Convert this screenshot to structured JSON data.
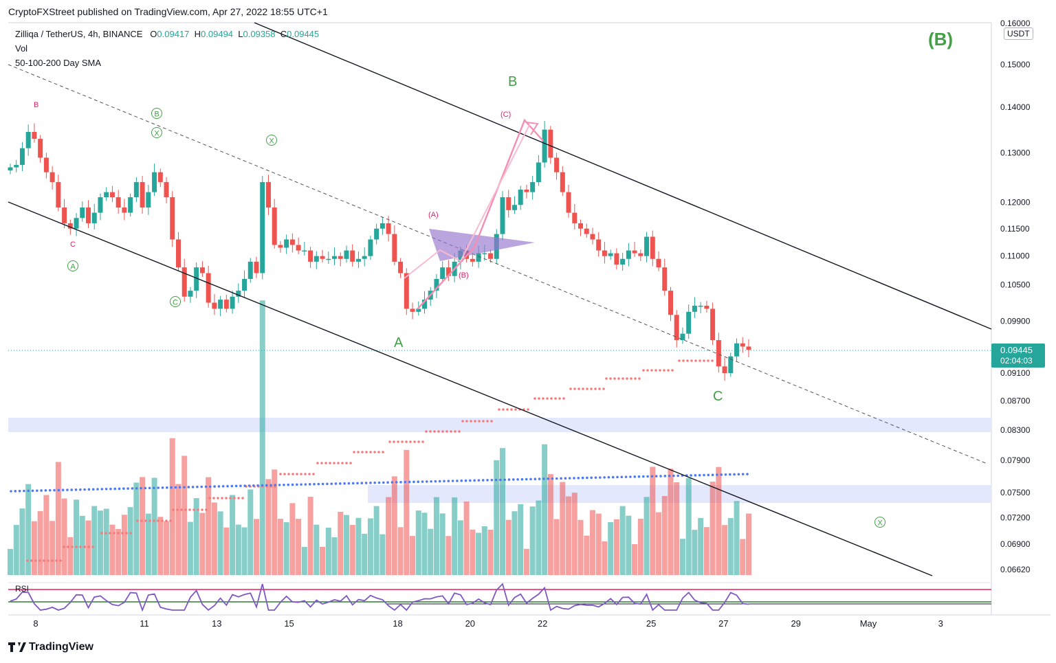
{
  "header": {
    "published": "CryptoFXStreet published on TradingView.com, Apr 27, 2022 18:55 UTC+1"
  },
  "legend": {
    "symbol": "Zilliqa / TetherUS, 4h, BINANCE",
    "o_label": "O",
    "o_value": "0.09417",
    "h_label": "H",
    "h_value": "0.09494",
    "l_label": "L",
    "l_value": "0.09358",
    "c_label": "C",
    "c_value": "0.09445",
    "vol": "Vol",
    "sma": "50-100-200 Day SMA"
  },
  "price_axis": {
    "currency": "USDT",
    "top_label": "0.16000",
    "current_price": "0.09445",
    "countdown": "02:04:03"
  },
  "rsi_label": "RSI",
  "footer": {
    "brand": "TradingView"
  },
  "colors": {
    "up": "#26a69a",
    "down": "#ef5350",
    "sma": "#4e79f5",
    "sar": "#f47c7c",
    "wave_green": "#43a047",
    "wave_pink": "#e91e63",
    "triangle": "#9575cd",
    "zone": "#e3e8fd",
    "rsi_line": "#7e57c2",
    "rsi_upper": "#e91e63",
    "rsi_lower": "#2e7d32"
  },
  "chart_data": {
    "type": "candlestick",
    "price_ticks": [
      0.15,
      0.14,
      0.13,
      0.12,
      0.115,
      0.11,
      0.105,
      0.099,
      0.091,
      0.087,
      0.083,
      0.079,
      0.075,
      0.072,
      0.069,
      0.0662
    ],
    "price_tick_labels": [
      "0.15000",
      "0.14000",
      "0.13000",
      "0.12000",
      "0.11500",
      "0.11000",
      "0.10500",
      "0.09900",
      "0.09100",
      "0.08700",
      "0.08300",
      "0.07900",
      "0.07500",
      "0.07200",
      "0.06900",
      "0.06620"
    ],
    "x_ticks": [
      "8",
      "11",
      "13",
      "15",
      "18",
      "20",
      "22",
      "25",
      "27",
      "29",
      "May",
      "3"
    ],
    "x_tick_days": [
      8,
      11,
      13,
      15,
      18,
      20,
      22,
      25,
      27,
      29,
      31,
      33
    ],
    "closes": [
      0.127,
      0.1275,
      0.131,
      0.1345,
      0.133,
      0.129,
      0.126,
      0.124,
      0.119,
      0.116,
      0.115,
      0.117,
      0.119,
      0.116,
      0.118,
      0.121,
      0.122,
      0.121,
      0.119,
      0.118,
      0.121,
      0.124,
      0.119,
      0.122,
      0.126,
      0.124,
      0.121,
      0.113,
      0.108,
      0.103,
      0.104,
      0.108,
      0.107,
      0.102,
      0.101,
      0.1025,
      0.101,
      0.103,
      0.104,
      0.106,
      0.109,
      0.107,
      0.124,
      0.119,
      0.112,
      0.1115,
      0.113,
      0.112,
      0.111,
      0.111,
      0.109,
      0.11,
      0.1095,
      0.1095,
      0.11,
      0.1095,
      0.111,
      0.109,
      0.1095,
      0.11,
      0.113,
      0.115,
      0.116,
      0.114,
      0.109,
      0.107,
      0.101,
      0.1005,
      0.101,
      0.1025,
      0.104,
      0.106,
      0.108,
      0.1065,
      0.109,
      0.111,
      0.1095,
      0.109,
      0.1105,
      0.1105,
      0.1095,
      0.114,
      0.121,
      0.1185,
      0.1195,
      0.1225,
      0.122,
      0.124,
      0.128,
      0.135,
      0.129,
      0.126,
      0.122,
      0.118,
      0.116,
      0.115,
      0.114,
      0.113,
      0.111,
      0.11,
      0.1105,
      0.1085,
      0.1095,
      0.111,
      0.1105,
      0.11,
      0.1135,
      0.1095,
      0.108,
      0.104,
      0.1,
      0.096,
      0.097,
      0.1005,
      0.1015,
      0.1015,
      0.101,
      0.096,
      0.092,
      0.091,
      0.0935,
      0.0955,
      0.095,
      0.0945
    ],
    "rsi_levels": {
      "upper": 70,
      "lower": 30
    },
    "annotations": {
      "waves_green": [
        "(B)",
        "B",
        "A",
        "C"
      ],
      "waves_pink": [
        "B",
        "C",
        "(A)",
        "(B)",
        "(C)"
      ]
    }
  }
}
